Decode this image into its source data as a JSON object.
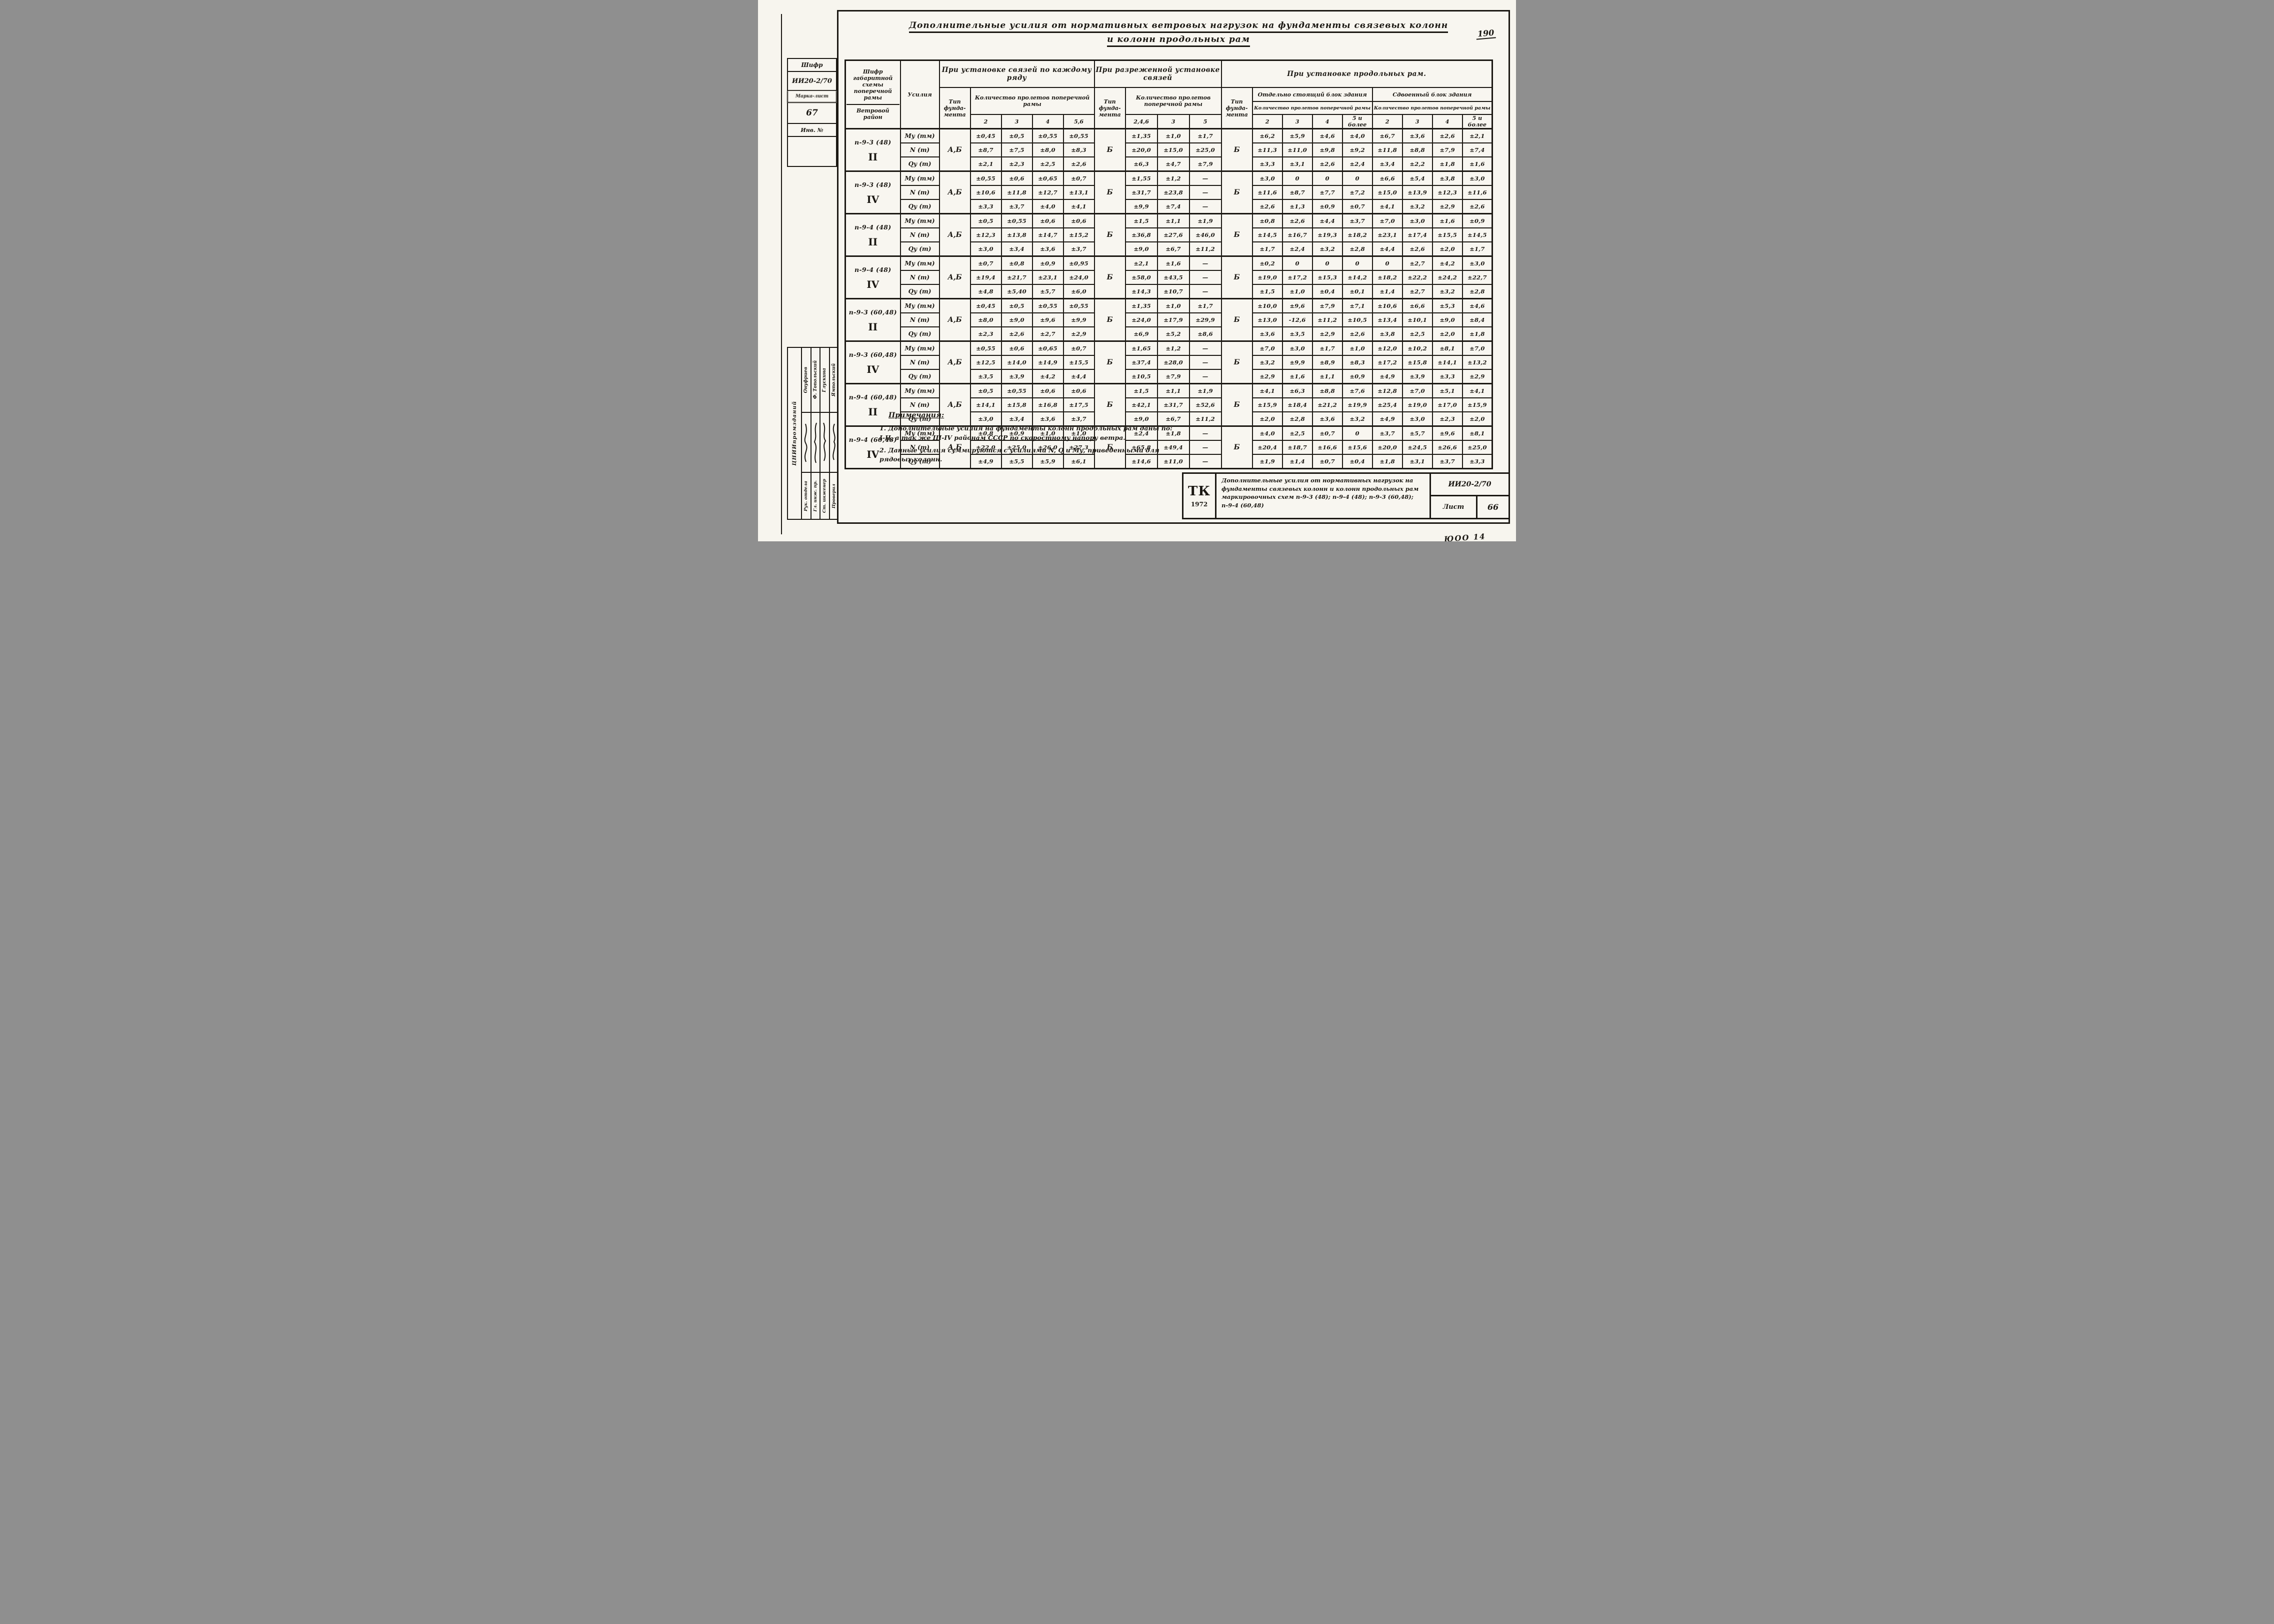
{
  "page": {
    "corner_number": "190",
    "bottom_right_mark": "ЮОО 14"
  },
  "title": {
    "line1": "Дополнительные усилия от нормативных ветровых нагрузок на фундаменты связевых колонн",
    "line2": "и колонн продольных рам"
  },
  "side_top": {
    "shifr_label": "Шифр",
    "shifr_value": "ИИ20-2/70",
    "marka_label": "Марка-лист",
    "marka_value": "67",
    "inv_label": "Инв. №"
  },
  "side_bottom": {
    "org": "ЦНИИпромзданий",
    "rows": [
      {
        "role": "Рук. отдела",
        "name": "Онуфриев"
      },
      {
        "role": "Гл. инж. пр.",
        "name": "Ф. Топольский"
      },
      {
        "role": "Ст. инженер",
        "name": "Глускина"
      },
      {
        "role": "Проверил",
        "name": "Ямпольский"
      }
    ]
  },
  "table": {
    "col1_header_top": "Шифр габаритной схемы поперечной рамы",
    "col1_header_bottom": "Ветровой район",
    "col2_header": "Усилия",
    "type_header": "Тип фунда- мента",
    "qty_header": "Количество пролетов поперечной рамы",
    "group_headers": [
      "При установке связей по каждому ряду",
      "При разреженной установке связей",
      "При установке продольных рам."
    ],
    "block_headers": [
      "Отдельно стоящий блок здания",
      "Сдвоенный блок здания"
    ],
    "spans_each": [
      "2",
      "3",
      "4",
      "5,6"
    ],
    "spans_sparse": [
      "2,4,6",
      "3",
      "5"
    ],
    "spans_block": [
      "2",
      "3",
      "4",
      "5 и более"
    ],
    "groups": [
      {
        "scheme": "п-9-3 (48)",
        "region": "II",
        "types": [
          "А,Б",
          "Б",
          "Б"
        ],
        "rows": [
          {
            "force": "Му (тм)",
            "each": [
              "±0,45",
              "±0,5",
              "±0,55",
              "±0,55"
            ],
            "sparse": [
              "±1,35",
              "±1,0",
              "±1,7"
            ],
            "long": [
              "±6,2",
              "±5,9",
              "±4,6",
              "±4,0",
              "±6,7",
              "±3,6",
              "±2,6",
              "±2,1"
            ]
          },
          {
            "force": "N (т)",
            "each": [
              "±8,7",
              "±7,5",
              "±8,0",
              "±8,3"
            ],
            "sparse": [
              "±20,0",
              "±15,0",
              "±25,0"
            ],
            "long": [
              "±11,3",
              "±11,0",
              "±9,8",
              "±9,2",
              "±11,8",
              "±8,8",
              "±7,9",
              "±7,4"
            ]
          },
          {
            "force": "Qу (т)",
            "each": [
              "±2,1",
              "±2,3",
              "±2,5",
              "±2,6"
            ],
            "sparse": [
              "±6,3",
              "±4,7",
              "±7,9"
            ],
            "long": [
              "±3,3",
              "±3,1",
              "±2,6",
              "±2,4",
              "±3,4",
              "±2,2",
              "±1,8",
              "±1,6"
            ]
          }
        ]
      },
      {
        "scheme": "п-9-3 (48)",
        "region": "IV",
        "types": [
          "А,Б",
          "Б",
          "Б"
        ],
        "rows": [
          {
            "force": "Му (тм)",
            "each": [
              "±0,55",
              "±0,6",
              "±0,65",
              "±0,7"
            ],
            "sparse": [
              "±1,55",
              "±1,2",
              "—"
            ],
            "long": [
              "±3,0",
              "0",
              "0",
              "0",
              "±6,6",
              "±5,4",
              "±3,8",
              "±3,0"
            ]
          },
          {
            "force": "N (т)",
            "each": [
              "±10,6",
              "±11,8",
              "±12,7",
              "±13,1"
            ],
            "sparse": [
              "±31,7",
              "±23,8",
              "—"
            ],
            "long": [
              "±11,6",
              "±8,7",
              "±7,7",
              "±7,2",
              "±15,0",
              "±13,9",
              "±12,3",
              "±11,6"
            ]
          },
          {
            "force": "Qу (т)",
            "each": [
              "±3,3",
              "±3,7",
              "±4,0",
              "±4,1"
            ],
            "sparse": [
              "±9,9",
              "±7,4",
              "—"
            ],
            "long": [
              "±2,6",
              "±1,3",
              "±0,9",
              "±0,7",
              "±4,1",
              "±3,2",
              "±2,9",
              "±2,6"
            ]
          }
        ]
      },
      {
        "scheme": "п-9-4 (48)",
        "region": "II",
        "types": [
          "А,Б",
          "Б",
          "Б"
        ],
        "rows": [
          {
            "force": "Му (тм)",
            "each": [
              "±0,5",
              "±0,55",
              "±0,6",
              "±0,6"
            ],
            "sparse": [
              "±1,5",
              "±1,1",
              "±1,9"
            ],
            "long": [
              "±0,8",
              "±2,6",
              "±4,4",
              "±3,7",
              "±7,0",
              "±3,0",
              "±1,6",
              "±0,9"
            ]
          },
          {
            "force": "N (т)",
            "each": [
              "±12,3",
              "±13,8",
              "±14,7",
              "±15,2"
            ],
            "sparse": [
              "±36,8",
              "±27,6",
              "±46,0"
            ],
            "long": [
              "±14,5",
              "±16,7",
              "±19,3",
              "±18,2",
              "±23,1",
              "±17,4",
              "±15,5",
              "±14,5"
            ]
          },
          {
            "force": "Qу (т)",
            "each": [
              "±3,0",
              "±3,4",
              "±3,6",
              "±3,7"
            ],
            "sparse": [
              "±9,0",
              "±6,7",
              "±11,2"
            ],
            "long": [
              "±1,7",
              "±2,4",
              "±3,2",
              "±2,8",
              "±4,4",
              "±2,6",
              "±2,0",
              "±1,7"
            ]
          }
        ]
      },
      {
        "scheme": "п-9-4 (48)",
        "region": "IV",
        "types": [
          "А,Б",
          "Б",
          "Б"
        ],
        "rows": [
          {
            "force": "Му (тм)",
            "each": [
              "±0,7",
              "±0,8",
              "±0,9",
              "±0,95"
            ],
            "sparse": [
              "±2,1",
              "±1,6",
              "—"
            ],
            "long": [
              "±0,2",
              "0",
              "0",
              "0",
              "0",
              "±2,7",
              "±4,2",
              "±3,0"
            ]
          },
          {
            "force": "N (т)",
            "each": [
              "±19,4",
              "±21,7",
              "±23,1",
              "±24,0"
            ],
            "sparse": [
              "±58,0",
              "±43,5",
              "—"
            ],
            "long": [
              "±19,0",
              "±17,2",
              "±15,3",
              "±14,2",
              "±18,2",
              "±22,2",
              "±24,2",
              "±22,7"
            ]
          },
          {
            "force": "Qу (т)",
            "each": [
              "±4,8",
              "±5,40",
              "±5,7",
              "±6,0"
            ],
            "sparse": [
              "±14,3",
              "±10,7",
              "—"
            ],
            "long": [
              "±1,5",
              "±1,0",
              "±0,4",
              "±0,1",
              "±1,4",
              "±2,7",
              "±3,2",
              "±2,8"
            ]
          }
        ]
      },
      {
        "scheme": "п-9-3 (60,48)",
        "region": "II",
        "types": [
          "А,Б",
          "Б",
          "Б"
        ],
        "rows": [
          {
            "force": "Му (тм)",
            "each": [
              "±0,45",
              "±0,5",
              "±0,55",
              "±0,55"
            ],
            "sparse": [
              "±1,35",
              "±1,0",
              "±1,7"
            ],
            "long": [
              "±10,0",
              "±9,6",
              "±7,9",
              "±7,1",
              "±10,6",
              "±6,6",
              "±5,3",
              "±4,6"
            ]
          },
          {
            "force": "N (т)",
            "each": [
              "±8,0",
              "±9,0",
              "±9,6",
              "±9,9"
            ],
            "sparse": [
              "±24,0",
              "±17,9",
              "±29,9"
            ],
            "long": [
              "±13,0",
              "-12,6",
              "±11,2",
              "±10,5",
              "±13,4",
              "±10,1",
              "±9,0",
              "±8,4"
            ]
          },
          {
            "force": "Qу (т)",
            "each": [
              "±2,3",
              "±2,6",
              "±2,7",
              "±2,9"
            ],
            "sparse": [
              "±6,9",
              "±5,2",
              "±8,6"
            ],
            "long": [
              "±3,6",
              "±3,5",
              "±2,9",
              "±2,6",
              "±3,8",
              "±2,5",
              "±2,0",
              "±1,8"
            ]
          }
        ]
      },
      {
        "scheme": "п-9-3 (60,48)",
        "region": "IV",
        "types": [
          "А,Б",
          "Б",
          "Б"
        ],
        "rows": [
          {
            "force": "Му (тм)",
            "each": [
              "±0,55",
              "±0,6",
              "±0,65",
              "±0,7"
            ],
            "sparse": [
              "±1,65",
              "±1,2",
              "—"
            ],
            "long": [
              "±7,0",
              "±3,0",
              "±1,7",
              "±1,0",
              "±12,0",
              "±10,2",
              "±8,1",
              "±7,0"
            ]
          },
          {
            "force": "N (т)",
            "each": [
              "±12,5",
              "±14,0",
              "±14,9",
              "±15,5"
            ],
            "sparse": [
              "±37,4",
              "±28,0",
              "—"
            ],
            "long": [
              "±3,2",
              "±9,9",
              "±8,9",
              "±8,3",
              "±17,2",
              "±15,8",
              "±14,1",
              "±13,2"
            ]
          },
          {
            "force": "Qу (т)",
            "each": [
              "±3,5",
              "±3,9",
              "±4,2",
              "±4,4"
            ],
            "sparse": [
              "±10,5",
              "±7,9",
              "—"
            ],
            "long": [
              "±2,9",
              "±1,6",
              "±1,1",
              "±0,9",
              "±4,9",
              "±3,9",
              "±3,3",
              "±2,9"
            ]
          }
        ]
      },
      {
        "scheme": "п-9-4 (60,48)",
        "region": "II",
        "types": [
          "А,Б",
          "Б",
          "Б"
        ],
        "rows": [
          {
            "force": "Му (тм)",
            "each": [
              "±0,5",
              "±0,55",
              "±0,6",
              "±0,6"
            ],
            "sparse": [
              "±1,5",
              "±1,1",
              "±1,9"
            ],
            "long": [
              "±4,1",
              "±6,3",
              "±8,8",
              "±7,6",
              "±12,8",
              "±7,0",
              "±5,1",
              "±4,1"
            ]
          },
          {
            "force": "N (т)",
            "each": [
              "±14,1",
              "±15,8",
              "±16,8",
              "±17,5"
            ],
            "sparse": [
              "±42,1",
              "±31,7",
              "±52,6"
            ],
            "long": [
              "±15,9",
              "±18,4",
              "±21,2",
              "±19,9",
              "±25,4",
              "±19,0",
              "±17,0",
              "±15,9"
            ]
          },
          {
            "force": "Qу (т)",
            "each": [
              "±3,0",
              "±3,4",
              "±3,6",
              "±3,7"
            ],
            "sparse": [
              "±9,0",
              "±6,7",
              "±11,2"
            ],
            "long": [
              "±2,0",
              "±2,8",
              "±3,6",
              "±3,2",
              "±4,9",
              "±3,0",
              "±2,3",
              "±2,0"
            ]
          }
        ]
      },
      {
        "scheme": "п-9-4 (60,48)",
        "region": "IV",
        "types": [
          "А,Б",
          "Б",
          "Б"
        ],
        "rows": [
          {
            "force": "Му (тм)",
            "each": [
              "±0,8",
              "±0,9",
              "±1,0",
              "±1,0"
            ],
            "sparse": [
              "±2,4",
              "±1,8",
              "—"
            ],
            "long": [
              "±4,0",
              "±2,5",
              "±0,7",
              "0",
              "±3,7",
              "±5,7",
              "±9,6",
              "±8,1"
            ]
          },
          {
            "force": "N (т)",
            "each": [
              "±22,0",
              "±25,0",
              "±26,0",
              "±27,3"
            ],
            "sparse": [
              "±65,8",
              "±49,4",
              "—"
            ],
            "long": [
              "±20,4",
              "±18,7",
              "±16,6",
              "±15,6",
              "±20,0",
              "±24,5",
              "±26,6",
              "±25,0"
            ]
          },
          {
            "force": "Qу (т)",
            "each": [
              "±4,9",
              "±5,5",
              "±5,9",
              "±6,1"
            ],
            "sparse": [
              "±14,6",
              "±11,0",
              "—"
            ],
            "long": [
              "±1,9",
              "±1,4",
              "±0,7",
              "±0,4",
              "±1,8",
              "±3,1",
              "±3,7",
              "±3,3"
            ]
          }
        ]
      }
    ]
  },
  "notes": {
    "heading": "Примечания:",
    "item1": "1. Дополнительные усилия на фундаменты колонн продольных рам даны по: I-II, а так же III-IV районам СССР по скоростному напору ветра.",
    "item2": "2. Данные усилия суммируются с усилиями N, Q и Му, приведенными для рядовых колонн."
  },
  "stamp": {
    "org": "ТК",
    "year": "1972",
    "description": "Дополнительные усилия от нормативных нагрузок на фундаменты связевых колонн и колонн продольных рам маркировочных схем п-9-3 (48); п-9-4 (48); п-9-3 (60,48); п-9-4 (60,48)",
    "code": "ИИ20-2/70",
    "sheet_label": "Лист",
    "sheet_number": "66"
  }
}
